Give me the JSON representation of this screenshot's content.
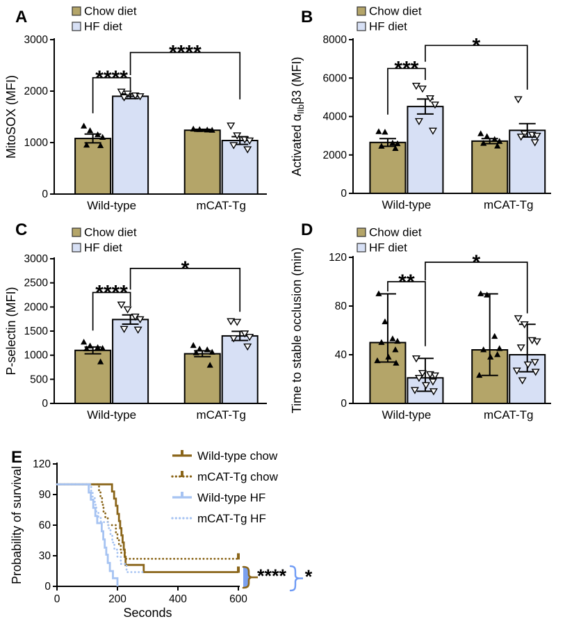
{
  "colors": {
    "chow_fill": "#b4a569",
    "hf_fill": "#d7e0f5",
    "bar_stroke": "#000000",
    "axis": "#000000",
    "point_fill": "#000000",
    "brown": "#8a6519",
    "blue": "#a6c3f2",
    "sig_brace_fill": "#7ba0ef",
    "sig_brace_blue": "#6f9bf5",
    "sig_text": "#000000"
  },
  "chart_data": [
    {
      "id": "A",
      "type": "bar",
      "panel_label": "A",
      "ylabel": "MitoSOX (MFI)",
      "ylim": [
        0,
        3000
      ],
      "yticks": [
        0,
        1000,
        2000,
        3000
      ],
      "categories": [
        "Wild-type",
        "mCAT-Tg"
      ],
      "legend": [
        "Chow diet",
        "HF diet"
      ],
      "bars": [
        {
          "group": "Wild-type",
          "diet": "Chow diet",
          "mean": 1080,
          "err_up": 85,
          "err_down": 85,
          "points": [
            1320,
            1230,
            1150,
            1100,
            950,
            940
          ]
        },
        {
          "group": "Wild-type",
          "diet": "HF diet",
          "mean": 1900,
          "err_up": 45,
          "err_down": 45,
          "points": [
            1990,
            1950,
            1915,
            1900,
            1880
          ]
        },
        {
          "group": "mCAT-Tg",
          "diet": "Chow diet",
          "mean": 1240,
          "err_up": 18,
          "err_down": 18,
          "points": [
            1262,
            1252,
            1244,
            1238
          ]
        },
        {
          "group": "mCAT-Tg",
          "diet": "HF diet",
          "mean": 1040,
          "err_up": 75,
          "err_down": 75,
          "points": [
            1330,
            1140,
            1060,
            1040,
            950,
            870
          ]
        }
      ],
      "significance": [
        {
          "a": 0,
          "b": 1,
          "label": "****",
          "y": 2260,
          "drop_a": 1570,
          "drop_b": 2010
        },
        {
          "a": 1,
          "b": 3,
          "label": "****",
          "y": 2750,
          "drop_a": 2310,
          "drop_b": 1840
        }
      ]
    },
    {
      "id": "B",
      "type": "bar",
      "panel_label": "B",
      "ylabel": "Activated αIIbβ3 (MFI)",
      "ylabel_parts": [
        {
          "t": "Activated α"
        },
        {
          "t": "IIb",
          "sub": true
        },
        {
          "t": "β3 (MFI)"
        }
      ],
      "ylim": [
        0,
        8000
      ],
      "yticks": [
        0,
        2000,
        4000,
        6000,
        8000
      ],
      "categories": [
        "Wild-type",
        "mCAT-Tg"
      ],
      "legend": [
        "Chow diet",
        "HF diet"
      ],
      "bars": [
        {
          "group": "Wild-type",
          "diet": "Chow diet",
          "mean": 2650,
          "err_up": 200,
          "err_down": 200,
          "points": [
            3210,
            3180,
            2610,
            2580,
            2450,
            2330
          ]
        },
        {
          "group": "Wild-type",
          "diet": "HF diet",
          "mean": 4520,
          "err_up": 390,
          "err_down": 390,
          "points": [
            5600,
            5450,
            4950,
            4620,
            3760,
            3260
          ]
        },
        {
          "group": "mCAT-Tg",
          "diet": "Chow diet",
          "mean": 2720,
          "err_up": 130,
          "err_down": 130,
          "points": [
            3100,
            2950,
            2800,
            2700,
            2600,
            2460
          ]
        },
        {
          "group": "mCAT-Tg",
          "diet": "HF diet",
          "mean": 3280,
          "err_up": 350,
          "err_down": 350,
          "points": [
            4900,
            3110,
            3050,
            3000,
            2950,
            2660
          ]
        }
      ],
      "significance": [
        {
          "a": 0,
          "b": 1,
          "label": "***",
          "y": 6500,
          "drop_a": 4100,
          "drop_b": 5900
        },
        {
          "a": 1,
          "b": 3,
          "label": "*",
          "y": 7700,
          "drop_a": 6850,
          "drop_b": 5400
        }
      ]
    },
    {
      "id": "C",
      "type": "bar",
      "panel_label": "C",
      "ylabel": "P-selectin (MFI)",
      "ylim": [
        0,
        3000
      ],
      "yticks": [
        0,
        500,
        1000,
        1500,
        2000,
        2500,
        3000
      ],
      "categories": [
        "Wild-type",
        "mCAT-Tg"
      ],
      "legend": [
        "Chow diet",
        "HF diet"
      ],
      "bars": [
        {
          "group": "Wild-type",
          "diet": "Chow diet",
          "mean": 1100,
          "err_up": 70,
          "err_down": 70,
          "points": [
            1270,
            1190,
            1155,
            1140,
            1130,
            860
          ]
        },
        {
          "group": "Wild-type",
          "diet": "HF diet",
          "mean": 1740,
          "err_up": 95,
          "err_down": 95,
          "points": [
            2050,
            1950,
            1800,
            1745,
            1545,
            1530
          ]
        },
        {
          "group": "mCAT-Tg",
          "diet": "Chow diet",
          "mean": 1030,
          "err_up": 60,
          "err_down": 60,
          "points": [
            1200,
            1125,
            1110,
            1060,
            1050,
            790
          ]
        },
        {
          "group": "mCAT-Tg",
          "diet": "HF diet",
          "mean": 1400,
          "err_up": 95,
          "err_down": 95,
          "points": [
            1705,
            1690,
            1450,
            1380,
            1350,
            1180
          ]
        }
      ],
      "significance": [
        {
          "a": 0,
          "b": 1,
          "label": "****",
          "y": 2300,
          "drop_a": 1510,
          "drop_b": 2020
        },
        {
          "a": 1,
          "b": 3,
          "label": "*",
          "y": 2800,
          "drop_a": 2360,
          "drop_b": 1900
        }
      ]
    },
    {
      "id": "D",
      "type": "bar",
      "panel_label": "D",
      "ylabel": "Time to stable occlusion (min)",
      "ylim": [
        0,
        120
      ],
      "yticks": [
        0,
        40,
        80,
        120
      ],
      "categories": [
        "Wild-type",
        "mCAT-Tg"
      ],
      "legend": [
        "Chow diet",
        "HF diet"
      ],
      "bars": [
        {
          "group": "Wild-type",
          "diet": "Chow diet",
          "mean": 50,
          "err_up": 40,
          "err_down": 16,
          "points": [
            90,
            67,
            53,
            51,
            50,
            44,
            38,
            35,
            33
          ]
        },
        {
          "group": "Wild-type",
          "diet": "HF diet",
          "mean": 21,
          "err_up": 16,
          "err_down": 11,
          "points": [
            37,
            25,
            24,
            23,
            21,
            18,
            15,
            11,
            10
          ]
        },
        {
          "group": "mCAT-Tg",
          "diet": "Chow diet",
          "mean": 44,
          "err_up": 46,
          "err_down": 21,
          "points": [
            90,
            89,
            55,
            45,
            44,
            40,
            38,
            23
          ]
        },
        {
          "group": "mCAT-Tg",
          "diet": "HF diet",
          "mean": 40,
          "err_up": 25,
          "err_down": 14,
          "points": [
            70,
            65,
            52,
            51,
            46,
            34,
            32,
            27,
            26,
            19
          ]
        }
      ],
      "significance": [
        {
          "a": 0,
          "b": 1,
          "label": "**",
          "y": 100,
          "drop_a": 92,
          "drop_b": 47
        },
        {
          "a": 1,
          "b": 3,
          "label": "*",
          "y": 116,
          "drop_a": 101,
          "drop_b": 74
        }
      ]
    },
    {
      "id": "E",
      "type": "line",
      "panel_label": "E",
      "xlabel": "Seconds",
      "ylabel": "Probability of survival",
      "xlim": [
        0,
        600
      ],
      "xticks": [
        0,
        200,
        400,
        600
      ],
      "ylim": [
        0,
        120
      ],
      "yticks": [
        0,
        30,
        60,
        90,
        120
      ],
      "series": [
        {
          "name": "Wild-type chow",
          "color": "brown",
          "style": "solid",
          "censor_at_end": true,
          "points": [
            [
              0,
              100
            ],
            [
              182,
              100
            ],
            [
              182,
              93
            ],
            [
              189,
              93
            ],
            [
              189,
              86
            ],
            [
              195,
              86
            ],
            [
              195,
              79
            ],
            [
              200,
              79
            ],
            [
              200,
              71
            ],
            [
              205,
              71
            ],
            [
              205,
              64
            ],
            [
              209,
              64
            ],
            [
              209,
              57
            ],
            [
              213,
              57
            ],
            [
              213,
              50
            ],
            [
              217,
              50
            ],
            [
              217,
              43
            ],
            [
              221,
              43
            ],
            [
              221,
              36
            ],
            [
              224,
              36
            ],
            [
              224,
              29
            ],
            [
              227,
              29
            ],
            [
              227,
              21
            ],
            [
              287,
              21
            ],
            [
              287,
              14
            ],
            [
              600,
              14
            ]
          ]
        },
        {
          "name": "mCAT-Tg chow",
          "color": "brown",
          "style": "dotted",
          "censor_at_end": true,
          "points": [
            [
              0,
              100
            ],
            [
              139,
              100
            ],
            [
              139,
              93
            ],
            [
              144,
              93
            ],
            [
              144,
              87
            ],
            [
              149,
              87
            ],
            [
              149,
              80
            ],
            [
              154,
              80
            ],
            [
              154,
              73
            ],
            [
              160,
              73
            ],
            [
              160,
              67
            ],
            [
              168,
              67
            ],
            [
              168,
              60
            ],
            [
              195,
              60
            ],
            [
              195,
              53
            ],
            [
              200,
              53
            ],
            [
              200,
              47
            ],
            [
              205,
              47
            ],
            [
              205,
              40
            ],
            [
              211,
              40
            ],
            [
              211,
              33
            ],
            [
              225,
              33
            ],
            [
              225,
              27
            ],
            [
              600,
              27
            ]
          ]
        },
        {
          "name": "Wild-type  HF",
          "color": "blue",
          "style": "solid",
          "censor_at_end": false,
          "points": [
            [
              0,
              100
            ],
            [
              105,
              100
            ],
            [
              105,
              92
            ],
            [
              112,
              92
            ],
            [
              112,
              85
            ],
            [
              120,
              85
            ],
            [
              120,
              77
            ],
            [
              127,
              77
            ],
            [
              127,
              69
            ],
            [
              133,
              69
            ],
            [
              133,
              62
            ],
            [
              148,
              62
            ],
            [
              148,
              54
            ],
            [
              153,
              54
            ],
            [
              153,
              46
            ],
            [
              158,
              46
            ],
            [
              158,
              38
            ],
            [
              163,
              38
            ],
            [
              163,
              31
            ],
            [
              168,
              31
            ],
            [
              168,
              23
            ],
            [
              175,
              23
            ],
            [
              175,
              15
            ],
            [
              185,
              15
            ],
            [
              185,
              8
            ],
            [
              200,
              8
            ],
            [
              200,
              0
            ]
          ]
        },
        {
          "name": "mCAT-Tg HF",
          "color": "blue",
          "style": "dotted",
          "censor_at_end": false,
          "points": [
            [
              0,
              100
            ],
            [
              113,
              100
            ],
            [
              113,
              93
            ],
            [
              118,
              93
            ],
            [
              118,
              87
            ],
            [
              125,
              87
            ],
            [
              125,
              80
            ],
            [
              130,
              80
            ],
            [
              130,
              73
            ],
            [
              137,
              73
            ],
            [
              137,
              67
            ],
            [
              145,
              67
            ],
            [
              145,
              63
            ],
            [
              170,
              63
            ],
            [
              170,
              57
            ],
            [
              177,
              57
            ],
            [
              177,
              50
            ],
            [
              183,
              50
            ],
            [
              183,
              43
            ],
            [
              190,
              43
            ],
            [
              190,
              36
            ],
            [
              200,
              36
            ],
            [
              200,
              29
            ],
            [
              211,
              29
            ],
            [
              211,
              22
            ],
            [
              230,
              22
            ],
            [
              230,
              14
            ],
            [
              287,
              14
            ]
          ]
        }
      ],
      "significance": [
        {
          "label": "****"
        },
        {
          "label": "*"
        }
      ]
    }
  ]
}
